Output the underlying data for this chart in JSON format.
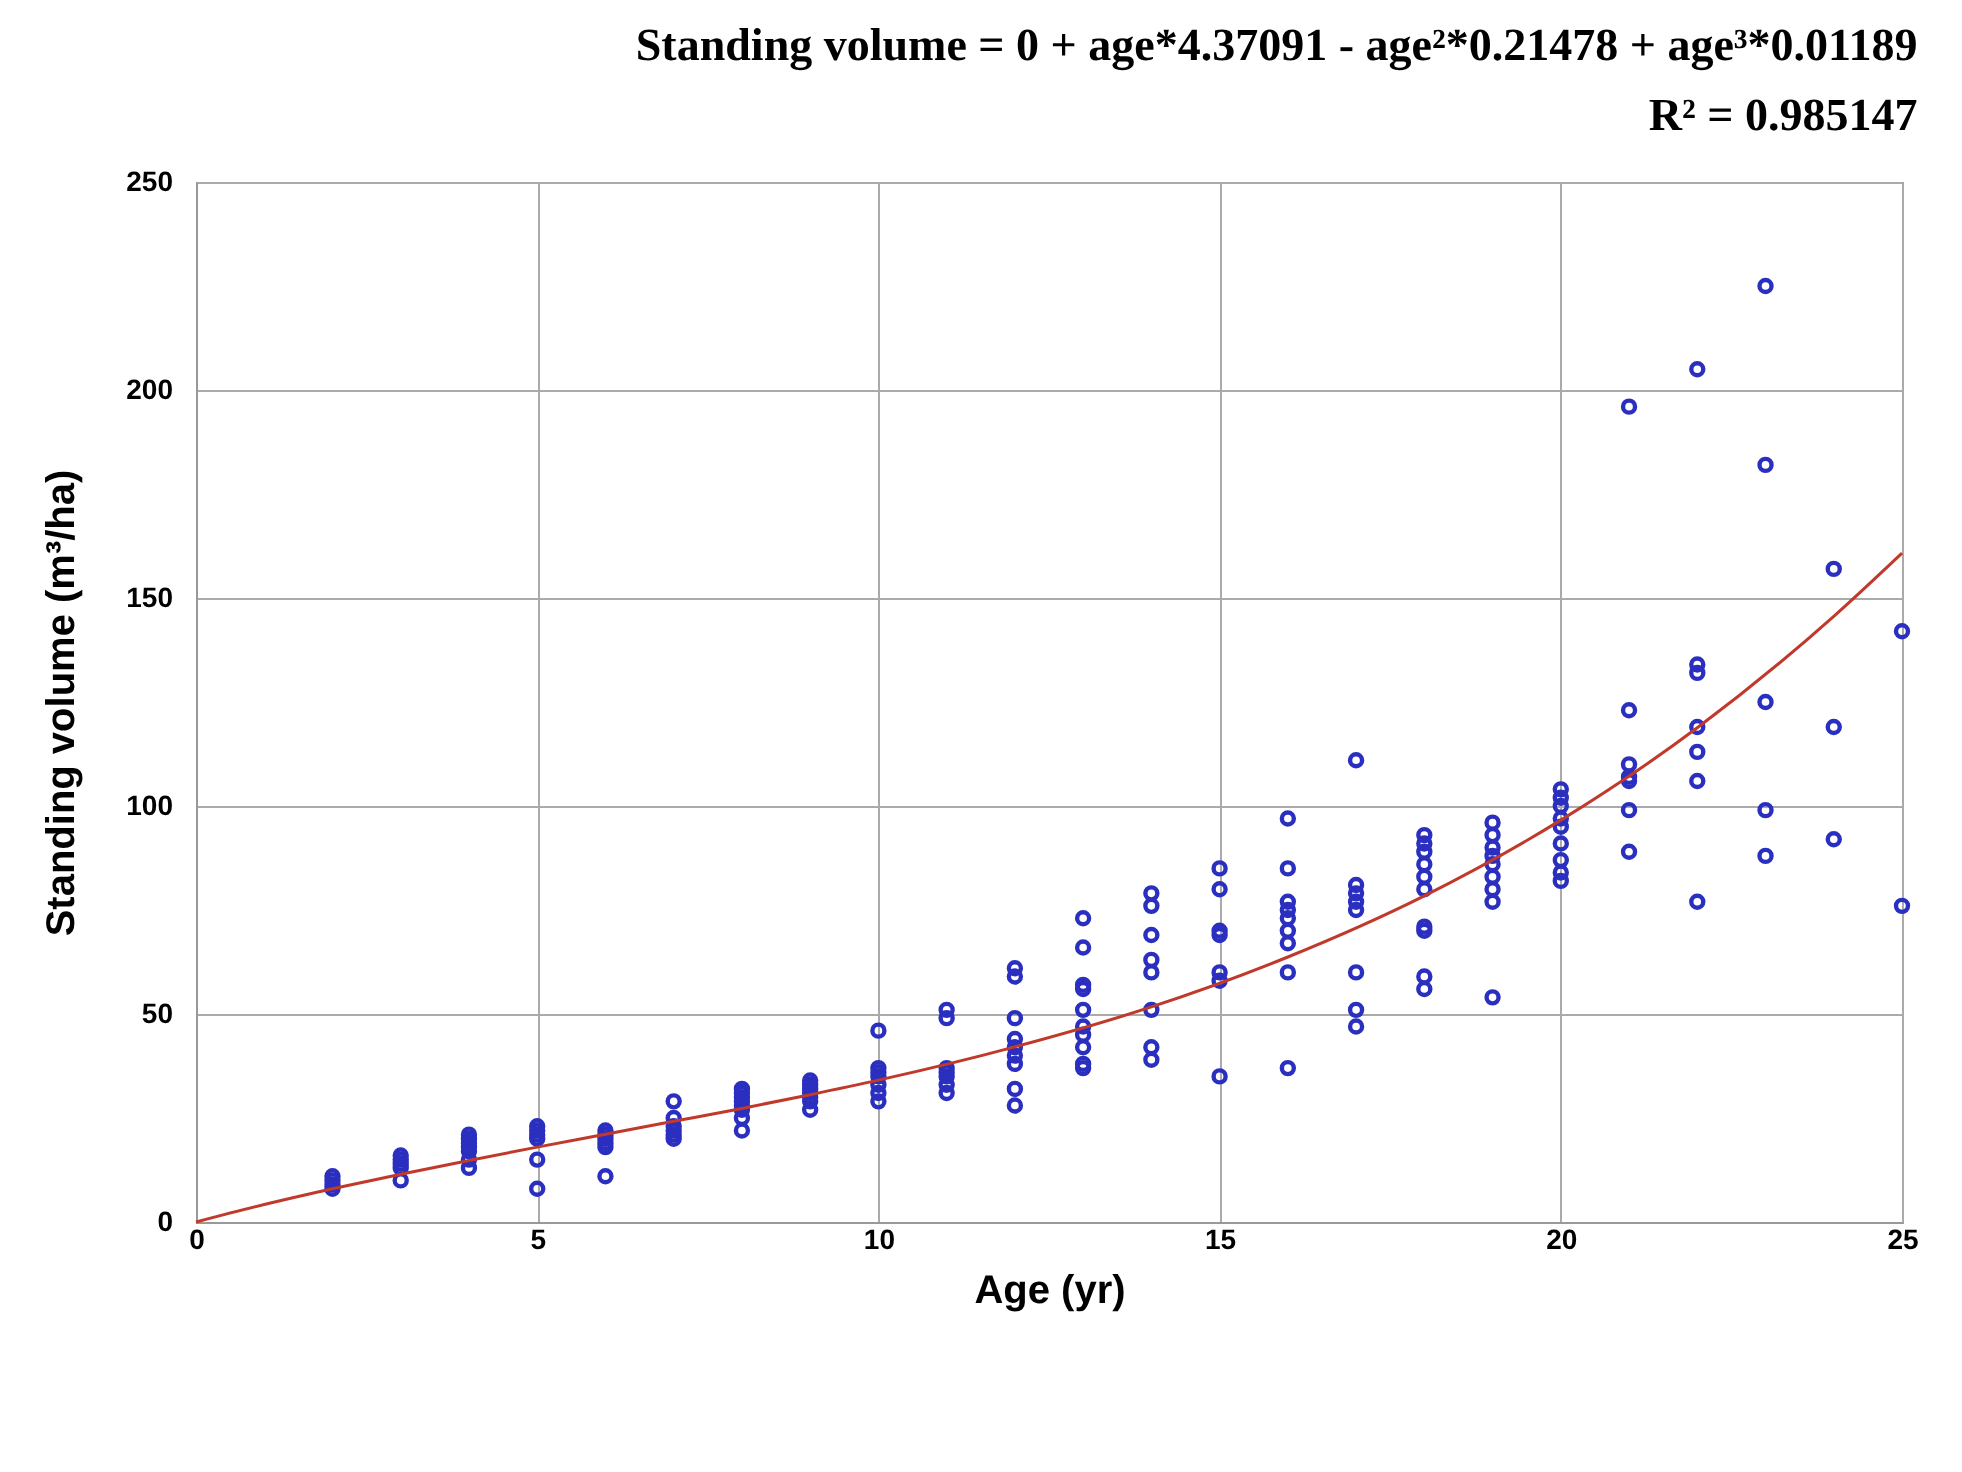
{
  "chart_data": {
    "type": "scatter",
    "title": "Standing volume = 0 + age*4.37091 - age²*0.21478 + age³*0.01189",
    "subtitle": "R² = 0.985147",
    "xlabel": "Age (yr)",
    "ylabel": "Standing volume (m³/ha)",
    "xlim": [
      0,
      25
    ],
    "xticks": [
      0,
      5,
      10,
      15,
      20,
      25
    ],
    "ylim": [
      0,
      250
    ],
    "yticks": [
      0,
      50,
      100,
      150,
      200,
      250
    ],
    "grid": true,
    "series": [
      {
        "marker": "circle",
        "color": "#2b2fbf",
        "x": [
          2,
          2,
          2,
          2,
          3,
          3,
          3,
          3,
          3,
          4,
          4,
          4,
          4,
          4,
          4,
          4,
          5,
          5,
          5,
          5,
          5,
          5,
          6,
          6,
          6,
          6,
          6,
          6,
          7,
          7,
          7,
          7,
          7,
          7,
          8,
          8,
          8,
          8,
          8,
          8,
          8,
          8,
          9,
          9,
          9,
          9,
          9,
          9,
          9,
          10,
          10,
          10,
          10,
          10,
          10,
          10,
          11,
          11,
          11,
          11,
          11,
          11,
          11,
          12,
          12,
          12,
          12,
          12,
          12,
          12,
          12,
          12,
          13,
          13,
          13,
          13,
          13,
          13,
          13,
          13,
          13,
          13,
          14,
          14,
          14,
          14,
          14,
          14,
          14,
          14,
          15,
          15,
          15,
          15,
          15,
          15,
          15,
          16,
          16,
          16,
          16,
          16,
          16,
          16,
          16,
          16,
          17,
          17,
          17,
          17,
          17,
          17,
          17,
          17,
          18,
          18,
          18,
          18,
          18,
          18,
          18,
          18,
          18,
          18,
          19,
          19,
          19,
          19,
          19,
          19,
          19,
          19,
          19,
          20,
          20,
          20,
          20,
          20,
          20,
          20,
          20,
          20,
          21,
          21,
          21,
          21,
          21,
          21,
          21,
          22,
          22,
          22,
          22,
          22,
          22,
          22,
          23,
          23,
          23,
          23,
          23,
          24,
          24,
          24,
          25,
          25
        ],
        "values": [
          8,
          9,
          10,
          11,
          10,
          13,
          14,
          15,
          16,
          13,
          15,
          17,
          18,
          19,
          20,
          21,
          8,
          15,
          20,
          21,
          22,
          23,
          11,
          18,
          19,
          20,
          21,
          22,
          20,
          21,
          22,
          23,
          25,
          29,
          22,
          25,
          27,
          28,
          29,
          30,
          31,
          32,
          27,
          29,
          30,
          31,
          32,
          33,
          34,
          29,
          31,
          33,
          35,
          36,
          37,
          46,
          31,
          33,
          35,
          36,
          37,
          49,
          51,
          28,
          32,
          38,
          40,
          42,
          44,
          49,
          59,
          61,
          37,
          38,
          42,
          45,
          47,
          51,
          56,
          57,
          66,
          73,
          39,
          42,
          51,
          60,
          63,
          69,
          76,
          79,
          35,
          58,
          60,
          69,
          70,
          80,
          85,
          37,
          60,
          67,
          70,
          73,
          75,
          77,
          85,
          97,
          47,
          51,
          60,
          75,
          77,
          79,
          81,
          111,
          56,
          59,
          70,
          71,
          80,
          83,
          86,
          89,
          91,
          93,
          54,
          77,
          80,
          83,
          86,
          88,
          90,
          93,
          96,
          82,
          84,
          87,
          91,
          95,
          97,
          100,
          102,
          104,
          89,
          99,
          106,
          107,
          110,
          123,
          196,
          77,
          106,
          113,
          119,
          132,
          134,
          205,
          88,
          99,
          125,
          182,
          225,
          92,
          119,
          157,
          76,
          142
        ]
      },
      {
        "type": "line",
        "marker": "none",
        "color": "#c0392b",
        "x": [
          0,
          1,
          2,
          3,
          4,
          5,
          6,
          7,
          8,
          9,
          10,
          12,
          14,
          16,
          18,
          20,
          22,
          24,
          25
        ],
        "values": [
          0,
          4.2,
          8.0,
          11.5,
          14.8,
          18.0,
          21.1,
          24.2,
          27.3,
          30.6,
          34.1,
          42.1,
          51.7,
          63.7,
          78.4,
          96.6,
          118.8,
          145.6,
          160.8
        ]
      }
    ]
  }
}
